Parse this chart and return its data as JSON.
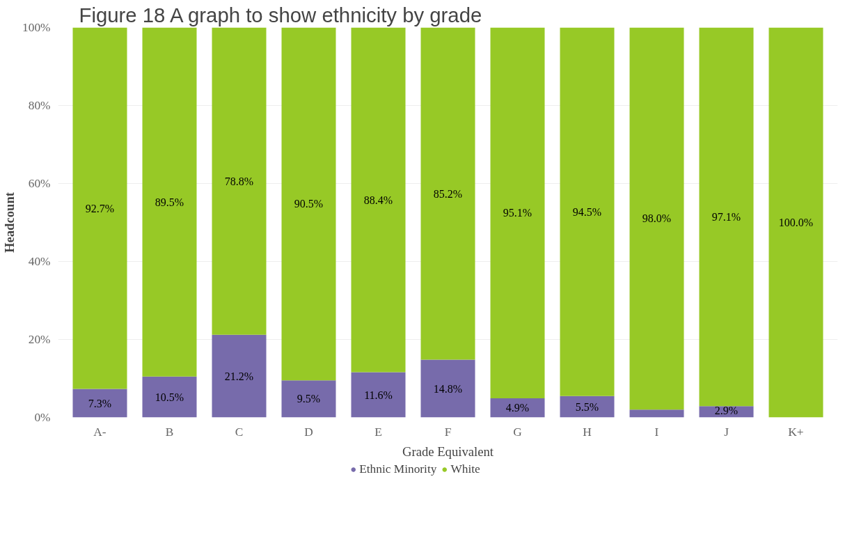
{
  "chart_data": {
    "type": "bar",
    "title": "Figure 18 A graph to show ethnicity by grade",
    "xlabel": "Grade Equivalent",
    "ylabel": "Headcount",
    "categories": [
      "A-",
      "B",
      "C",
      "D",
      "E",
      "F",
      "G",
      "H",
      "I",
      "J",
      "K+"
    ],
    "stacked": true,
    "ylim": [
      0,
      100
    ],
    "yticks": [
      {
        "value": 0,
        "label": "0%"
      },
      {
        "value": 20,
        "label": "20%"
      },
      {
        "value": 40,
        "label": "40%"
      },
      {
        "value": 60,
        "label": "60%"
      },
      {
        "value": 80,
        "label": "80%"
      },
      {
        "value": 100,
        "label": "100%"
      }
    ],
    "grid": "y",
    "legend": "bottom",
    "marker": "circle",
    "series": [
      {
        "name": "Ethnic Minority",
        "color": "#776bab",
        "values": [
          7.3,
          10.5,
          21.2,
          9.5,
          11.6,
          14.8,
          4.9,
          5.5,
          2.0,
          2.9,
          0
        ],
        "value_labels": [
          "7.3%",
          "10.5%",
          "21.2%",
          "9.5%",
          "11.6%",
          "14.8%",
          "4.9%",
          "5.5%",
          null,
          "2.9%",
          null
        ]
      },
      {
        "name": "White",
        "color": "#97c926",
        "values": [
          92.7,
          89.5,
          78.8,
          90.5,
          88.4,
          85.2,
          95.1,
          94.5,
          98.0,
          97.1,
          100.0
        ],
        "value_labels": [
          "92.7%",
          "89.5%",
          "78.8%",
          "90.5%",
          "88.4%",
          "85.2%",
          "95.1%",
          "94.5%",
          "98.0%",
          "97.1%",
          "100.0%"
        ]
      }
    ]
  }
}
